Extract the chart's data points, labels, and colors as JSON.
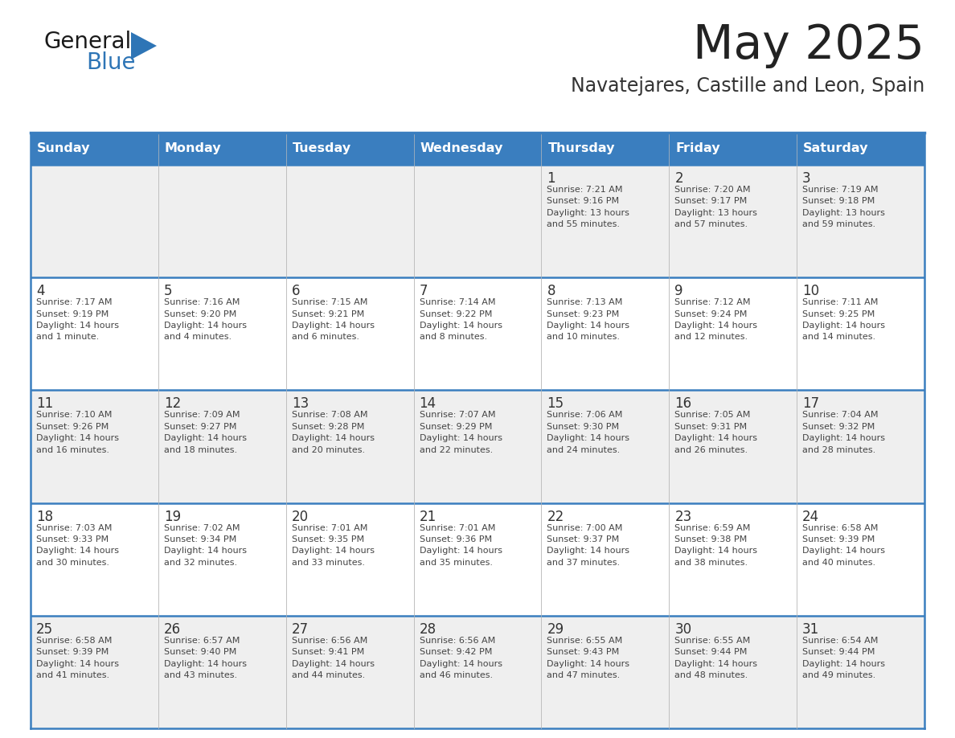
{
  "title": "May 2025",
  "subtitle": "Navatejares, Castille and Leon, Spain",
  "days_of_week": [
    "Sunday",
    "Monday",
    "Tuesday",
    "Wednesday",
    "Thursday",
    "Friday",
    "Saturday"
  ],
  "header_bg": "#3a7ebf",
  "header_text": "#FFFFFF",
  "row_bg_odd": "#EFEFEF",
  "row_bg_even": "#FFFFFF",
  "cell_text_color": "#444444",
  "day_num_color": "#333333",
  "border_color": "#3a7ebf",
  "title_color": "#222222",
  "subtitle_color": "#333333",
  "logo_general_color": "#1A1A1A",
  "logo_blue_color": "#2E75B6",
  "weeks": [
    [
      {
        "day": null,
        "info": null
      },
      {
        "day": null,
        "info": null
      },
      {
        "day": null,
        "info": null
      },
      {
        "day": null,
        "info": null
      },
      {
        "day": 1,
        "info": "Sunrise: 7:21 AM\nSunset: 9:16 PM\nDaylight: 13 hours\nand 55 minutes."
      },
      {
        "day": 2,
        "info": "Sunrise: 7:20 AM\nSunset: 9:17 PM\nDaylight: 13 hours\nand 57 minutes."
      },
      {
        "day": 3,
        "info": "Sunrise: 7:19 AM\nSunset: 9:18 PM\nDaylight: 13 hours\nand 59 minutes."
      }
    ],
    [
      {
        "day": 4,
        "info": "Sunrise: 7:17 AM\nSunset: 9:19 PM\nDaylight: 14 hours\nand 1 minute."
      },
      {
        "day": 5,
        "info": "Sunrise: 7:16 AM\nSunset: 9:20 PM\nDaylight: 14 hours\nand 4 minutes."
      },
      {
        "day": 6,
        "info": "Sunrise: 7:15 AM\nSunset: 9:21 PM\nDaylight: 14 hours\nand 6 minutes."
      },
      {
        "day": 7,
        "info": "Sunrise: 7:14 AM\nSunset: 9:22 PM\nDaylight: 14 hours\nand 8 minutes."
      },
      {
        "day": 8,
        "info": "Sunrise: 7:13 AM\nSunset: 9:23 PM\nDaylight: 14 hours\nand 10 minutes."
      },
      {
        "day": 9,
        "info": "Sunrise: 7:12 AM\nSunset: 9:24 PM\nDaylight: 14 hours\nand 12 minutes."
      },
      {
        "day": 10,
        "info": "Sunrise: 7:11 AM\nSunset: 9:25 PM\nDaylight: 14 hours\nand 14 minutes."
      }
    ],
    [
      {
        "day": 11,
        "info": "Sunrise: 7:10 AM\nSunset: 9:26 PM\nDaylight: 14 hours\nand 16 minutes."
      },
      {
        "day": 12,
        "info": "Sunrise: 7:09 AM\nSunset: 9:27 PM\nDaylight: 14 hours\nand 18 minutes."
      },
      {
        "day": 13,
        "info": "Sunrise: 7:08 AM\nSunset: 9:28 PM\nDaylight: 14 hours\nand 20 minutes."
      },
      {
        "day": 14,
        "info": "Sunrise: 7:07 AM\nSunset: 9:29 PM\nDaylight: 14 hours\nand 22 minutes."
      },
      {
        "day": 15,
        "info": "Sunrise: 7:06 AM\nSunset: 9:30 PM\nDaylight: 14 hours\nand 24 minutes."
      },
      {
        "day": 16,
        "info": "Sunrise: 7:05 AM\nSunset: 9:31 PM\nDaylight: 14 hours\nand 26 minutes."
      },
      {
        "day": 17,
        "info": "Sunrise: 7:04 AM\nSunset: 9:32 PM\nDaylight: 14 hours\nand 28 minutes."
      }
    ],
    [
      {
        "day": 18,
        "info": "Sunrise: 7:03 AM\nSunset: 9:33 PM\nDaylight: 14 hours\nand 30 minutes."
      },
      {
        "day": 19,
        "info": "Sunrise: 7:02 AM\nSunset: 9:34 PM\nDaylight: 14 hours\nand 32 minutes."
      },
      {
        "day": 20,
        "info": "Sunrise: 7:01 AM\nSunset: 9:35 PM\nDaylight: 14 hours\nand 33 minutes."
      },
      {
        "day": 21,
        "info": "Sunrise: 7:01 AM\nSunset: 9:36 PM\nDaylight: 14 hours\nand 35 minutes."
      },
      {
        "day": 22,
        "info": "Sunrise: 7:00 AM\nSunset: 9:37 PM\nDaylight: 14 hours\nand 37 minutes."
      },
      {
        "day": 23,
        "info": "Sunrise: 6:59 AM\nSunset: 9:38 PM\nDaylight: 14 hours\nand 38 minutes."
      },
      {
        "day": 24,
        "info": "Sunrise: 6:58 AM\nSunset: 9:39 PM\nDaylight: 14 hours\nand 40 minutes."
      }
    ],
    [
      {
        "day": 25,
        "info": "Sunrise: 6:58 AM\nSunset: 9:39 PM\nDaylight: 14 hours\nand 41 minutes."
      },
      {
        "day": 26,
        "info": "Sunrise: 6:57 AM\nSunset: 9:40 PM\nDaylight: 14 hours\nand 43 minutes."
      },
      {
        "day": 27,
        "info": "Sunrise: 6:56 AM\nSunset: 9:41 PM\nDaylight: 14 hours\nand 44 minutes."
      },
      {
        "day": 28,
        "info": "Sunrise: 6:56 AM\nSunset: 9:42 PM\nDaylight: 14 hours\nand 46 minutes."
      },
      {
        "day": 29,
        "info": "Sunrise: 6:55 AM\nSunset: 9:43 PM\nDaylight: 14 hours\nand 47 minutes."
      },
      {
        "day": 30,
        "info": "Sunrise: 6:55 AM\nSunset: 9:44 PM\nDaylight: 14 hours\nand 48 minutes."
      },
      {
        "day": 31,
        "info": "Sunrise: 6:54 AM\nSunset: 9:44 PM\nDaylight: 14 hours\nand 49 minutes."
      }
    ]
  ]
}
